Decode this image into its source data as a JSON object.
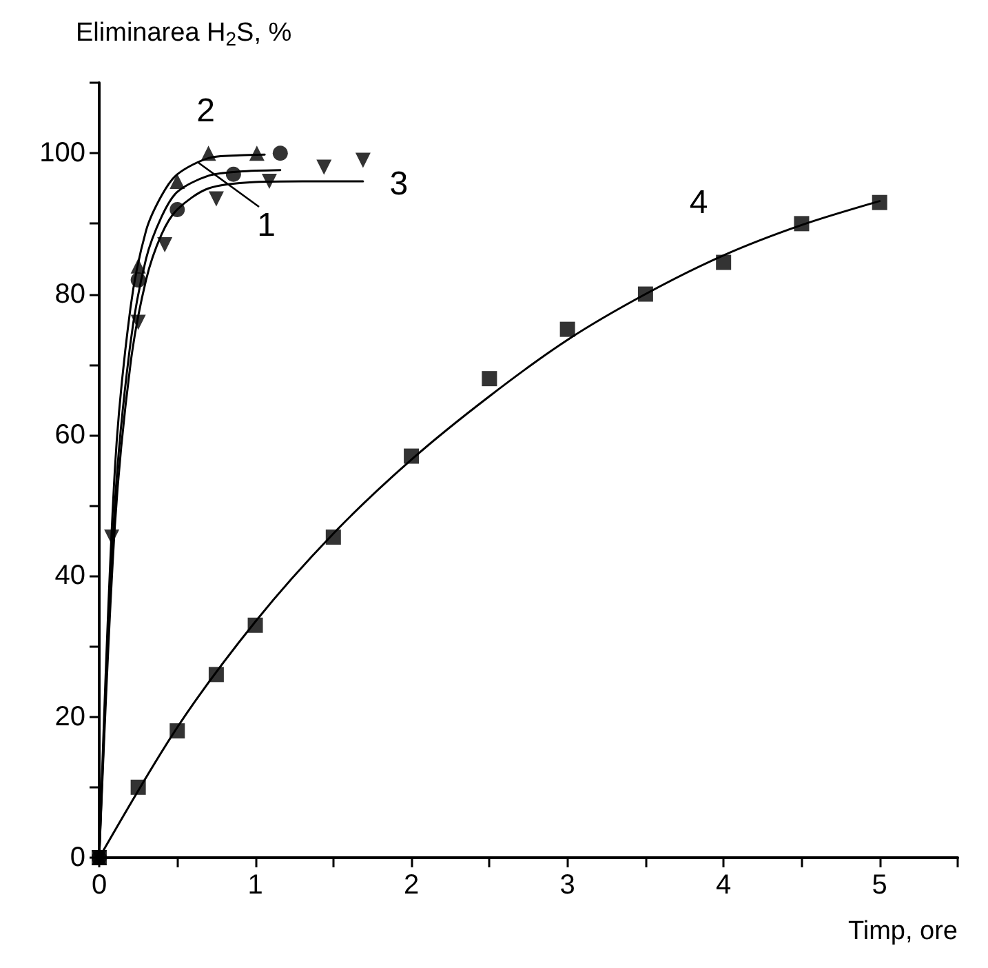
{
  "chart_data": {
    "type": "scatter",
    "xlabel": "Timp, ore",
    "ylabel": "Eliminarea H$_{2}$S, %",
    "xlim": [
      0,
      5.5
    ],
    "xticks": [
      0,
      1,
      2,
      3,
      4,
      5
    ],
    "ylim": [
      0,
      110
    ],
    "yticks": [
      0,
      20,
      40,
      60,
      80,
      100
    ],
    "grid": false,
    "series": [
      {
        "marker": "circle",
        "color": "#000000",
        "x": [
          0,
          0.25,
          0.5,
          0.86,
          1.16
        ],
        "values": [
          0,
          82,
          92,
          97,
          100
        ]
      },
      {
        "marker": "triangle",
        "color": "#000000",
        "x": [
          0,
          0.25,
          0.5,
          0.7,
          1.01
        ],
        "values": [
          0,
          84,
          96,
          100,
          100
        ]
      },
      {
        "marker": "triangle-down",
        "color": "#000000",
        "x": [
          0,
          0.08,
          0.25,
          0.42,
          0.75,
          1.09,
          1.44,
          1.69
        ],
        "values": [
          0,
          45.5,
          76,
          87,
          93.5,
          96,
          98,
          99
        ]
      },
      {
        "marker": "square",
        "color": "#000000",
        "x": [
          0,
          0.25,
          0.5,
          0.75,
          1,
          1.5,
          2,
          2.5,
          3,
          3.5,
          4,
          4.5,
          5
        ],
        "values": [
          0,
          10,
          18,
          26,
          33,
          45.5,
          57,
          68,
          75,
          80,
          84.5,
          90,
          93
        ]
      },
      {
        "type": "line",
        "name": "1",
        "marker": "none",
        "color": "#000000",
        "x": [
          0,
          0.1,
          0.2,
          0.3,
          0.4,
          0.5,
          0.7,
          0.9,
          1.16
        ],
        "values": [
          0,
          50,
          73,
          85,
          91,
          94.5,
          96.8,
          97.4,
          97.6
        ]
      },
      {
        "type": "line",
        "name": "2",
        "marker": "none",
        "color": "#000000",
        "x": [
          0,
          0.1,
          0.2,
          0.3,
          0.4,
          0.5,
          0.7,
          0.9,
          1.06
        ],
        "values": [
          0,
          55,
          78,
          89,
          94,
          97,
          99.3,
          99.7,
          99.8
        ]
      },
      {
        "type": "line",
        "name": "3",
        "marker": "none",
        "color": "#000000",
        "x": [
          0,
          0.1,
          0.2,
          0.3,
          0.4,
          0.5,
          0.7,
          1.0,
          1.3,
          1.69
        ],
        "values": [
          0,
          47,
          70,
          82,
          88.5,
          92,
          95,
          95.9,
          96,
          96
        ]
      },
      {
        "type": "line",
        "name": "4",
        "marker": "none",
        "color": "#000000",
        "x": [
          0,
          0.5,
          1,
          1.5,
          2,
          2.5,
          3,
          3.5,
          4,
          4.5,
          5
        ],
        "values": [
          0,
          18.5,
          33.5,
          46,
          56.5,
          65.5,
          73.5,
          80,
          85.5,
          89.8,
          93.2
        ]
      }
    ]
  }
}
